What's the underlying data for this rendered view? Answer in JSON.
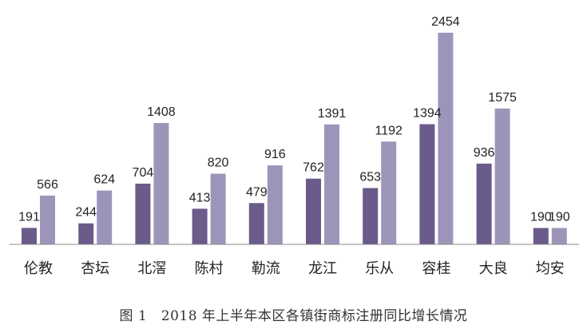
{
  "chart_data": {
    "type": "bar",
    "title": "",
    "xlabel": "",
    "ylabel": "",
    "ylim": [
      0,
      2454
    ],
    "grid": false,
    "legend": "none",
    "categories": [
      "伦教",
      "杏坛",
      "北滘",
      "陈村",
      "勒流",
      "龙江",
      "乐从",
      "容桂",
      "大良",
      "均安"
    ],
    "series": [
      {
        "color": "#6a5b8a",
        "values": [
          191,
          244,
          704,
          413,
          479,
          762,
          653,
          1394,
          936,
          190
        ]
      },
      {
        "color": "#9d95b9",
        "values": [
          566,
          624,
          1408,
          820,
          916,
          1391,
          1192,
          2454,
          1575,
          190
        ]
      }
    ],
    "data_labels": true
  },
  "caption": "图 1　2018 年上半年本区各镇街商标注册同比增长情况"
}
